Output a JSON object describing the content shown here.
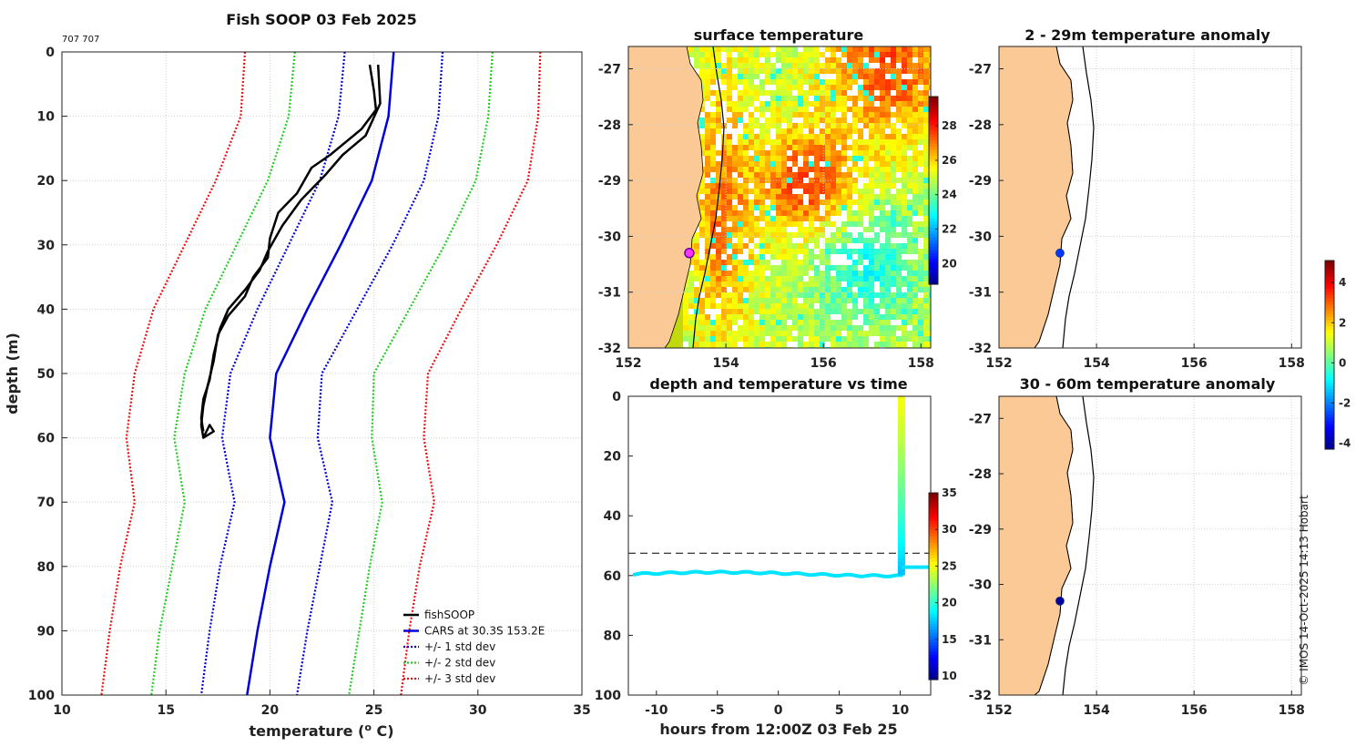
{
  "figure": {
    "copyright": "© IMOS 14-Oct-2025 14:13 Hobart",
    "land_color": "#fbc995"
  },
  "chart_data": [
    {
      "id": "profile",
      "type": "line",
      "title": "Fish SOOP 03 Feb 2025",
      "note": "707 707",
      "xlabel": "temperature (",
      "xlabel_sup": "o",
      "xlabel_end": " C)",
      "ylabel": "depth (m)",
      "xlim": [
        10,
        35
      ],
      "ylim": [
        0,
        100
      ],
      "xticks": [
        10,
        15,
        20,
        25,
        30,
        35
      ],
      "yticks": [
        0,
        10,
        20,
        30,
        40,
        50,
        60,
        70,
        80,
        90,
        100
      ],
      "legend_position": "bottom-right",
      "series": [
        {
          "name": "fishSOOP",
          "color": "#000000",
          "style": "solid",
          "points": [
            [
              24.8,
              2
            ],
            [
              25.0,
              6
            ],
            [
              25.1,
              9
            ],
            [
              24.4,
              12
            ],
            [
              22.9,
              16
            ],
            [
              22.0,
              18
            ],
            [
              21.3,
              22
            ],
            [
              20.4,
              25
            ],
            [
              20.0,
              29
            ],
            [
              19.9,
              32
            ],
            [
              19.2,
              35
            ],
            [
              18.8,
              38
            ],
            [
              18.0,
              41
            ],
            [
              17.5,
              44
            ],
            [
              17.3,
              48
            ],
            [
              17.0,
              52
            ],
            [
              16.8,
              55
            ],
            [
              16.7,
              58
            ],
            [
              16.8,
              60
            ],
            [
              17.3,
              59
            ],
            [
              17.1,
              58
            ],
            [
              16.8,
              60
            ]
          ]
        },
        {
          "name": "fishSOOP",
          "color": "#000000",
          "style": "solid",
          "nolegend": true,
          "points": [
            [
              25.2,
              2
            ],
            [
              25.3,
              8
            ],
            [
              24.6,
              13
            ],
            [
              23.5,
              16
            ],
            [
              22.7,
              19
            ],
            [
              21.5,
              23
            ],
            [
              20.6,
              27
            ],
            [
              19.9,
              31
            ],
            [
              19.5,
              34
            ],
            [
              18.8,
              37
            ],
            [
              18.0,
              40
            ],
            [
              17.6,
              43
            ],
            [
              17.3,
              47
            ],
            [
              17.1,
              51
            ],
            [
              16.8,
              54
            ],
            [
              16.7,
              57
            ],
            [
              16.8,
              59
            ]
          ]
        },
        {
          "name": "CARS at 30.3S 153.2E",
          "color": "#0000dd",
          "style": "solid",
          "points": [
            [
              25.95,
              0
            ],
            [
              25.7,
              10
            ],
            [
              24.9,
              20
            ],
            [
              23.4,
              30
            ],
            [
              21.8,
              40
            ],
            [
              20.3,
              50
            ],
            [
              20.0,
              60
            ],
            [
              20.7,
              70
            ],
            [
              20.0,
              80
            ],
            [
              19.4,
              90
            ],
            [
              18.9,
              100
            ]
          ]
        },
        {
          "name": "+/- 1 std dev",
          "color": "#0000dd",
          "style": "dotted",
          "points": [
            [
              23.6,
              0
            ],
            [
              23.3,
              10
            ],
            [
              22.4,
              20
            ],
            [
              20.9,
              30
            ],
            [
              19.4,
              40
            ],
            [
              18.1,
              50
            ],
            [
              17.7,
              60
            ],
            [
              18.3,
              70
            ],
            [
              17.6,
              80
            ],
            [
              17.1,
              90
            ],
            [
              16.7,
              100
            ]
          ]
        },
        {
          "name": "+/- 1 std dev",
          "color": "#0000dd",
          "style": "dotted",
          "nolegend": true,
          "points": [
            [
              28.3,
              0
            ],
            [
              28.1,
              10
            ],
            [
              27.4,
              20
            ],
            [
              25.9,
              30
            ],
            [
              24.2,
              40
            ],
            [
              22.5,
              50
            ],
            [
              22.3,
              60
            ],
            [
              23.0,
              70
            ],
            [
              22.4,
              80
            ],
            [
              21.8,
              90
            ],
            [
              21.3,
              100
            ]
          ]
        },
        {
          "name": "+/- 2 std dev",
          "color": "#22cc22",
          "style": "dotted",
          "points": [
            [
              21.2,
              0
            ],
            [
              20.9,
              10
            ],
            [
              19.9,
              20
            ],
            [
              18.4,
              30
            ],
            [
              16.9,
              40
            ],
            [
              15.9,
              50
            ],
            [
              15.4,
              60
            ],
            [
              15.9,
              70
            ],
            [
              15.3,
              80
            ],
            [
              14.7,
              90
            ],
            [
              14.3,
              100
            ]
          ]
        },
        {
          "name": "+/- 2 std dev",
          "color": "#22cc22",
          "style": "dotted",
          "nolegend": true,
          "points": [
            [
              30.7,
              0
            ],
            [
              30.5,
              10
            ],
            [
              29.9,
              20
            ],
            [
              28.4,
              30
            ],
            [
              26.7,
              40
            ],
            [
              25.0,
              50
            ],
            [
              24.9,
              60
            ],
            [
              25.4,
              70
            ],
            [
              24.8,
              80
            ],
            [
              24.3,
              90
            ],
            [
              23.8,
              100
            ]
          ]
        },
        {
          "name": "+/- 3 std dev",
          "color": "#ee1111",
          "style": "dotted",
          "points": [
            [
              18.8,
              0
            ],
            [
              18.6,
              10
            ],
            [
              17.4,
              20
            ],
            [
              15.9,
              30
            ],
            [
              14.4,
              40
            ],
            [
              13.5,
              50
            ],
            [
              13.1,
              60
            ],
            [
              13.5,
              70
            ],
            [
              12.8,
              80
            ],
            [
              12.3,
              90
            ],
            [
              11.9,
              100
            ]
          ]
        },
        {
          "name": "+/- 3 std dev",
          "color": "#ee1111",
          "style": "dotted",
          "nolegend": true,
          "points": [
            [
              33.0,
              0
            ],
            [
              32.9,
              10
            ],
            [
              32.4,
              20
            ],
            [
              30.9,
              30
            ],
            [
              29.2,
              40
            ],
            [
              27.6,
              50
            ],
            [
              27.4,
              60
            ],
            [
              27.9,
              70
            ],
            [
              27.2,
              80
            ],
            [
              26.7,
              90
            ],
            [
              26.3,
              100
            ]
          ]
        }
      ]
    },
    {
      "id": "sst_map",
      "type": "heatmap",
      "title": "surface temperature",
      "xlim": [
        152,
        158.2
      ],
      "ylim": [
        -32,
        -26.6
      ],
      "xticks": [
        152,
        154,
        156,
        158
      ],
      "yticks": [
        -27,
        -28,
        -29,
        -30,
        -31,
        -32
      ],
      "colorbar_ticks": [
        20,
        22,
        24,
        26,
        28
      ],
      "colorbar_range": [
        18.8,
        29.7
      ],
      "vessel_position": [
        153.25,
        -30.3
      ]
    },
    {
      "id": "depth_time",
      "type": "scatter",
      "title": "depth and temperature vs time",
      "xlabel": "hours from 12:00Z 03 Feb 25",
      "xlim": [
        -12.3,
        12.5
      ],
      "ylim": [
        0,
        100
      ],
      "xticks": [
        -10,
        -5,
        0,
        5,
        10
      ],
      "yticks": [
        0,
        20,
        40,
        60,
        80,
        100
      ],
      "colorbar_ticks": [
        10,
        15,
        20,
        25,
        30,
        35
      ],
      "colorbar_range": [
        9.5,
        35
      ],
      "reference_depth": 52.5,
      "surface_track": {
        "hours_start": -11.8,
        "hours_end": 10.1,
        "depth": 59.5,
        "temperature": 18.4
      },
      "cast": {
        "hours": 10.1,
        "depth_top": 1,
        "depth_bottom": 59,
        "temp_top": 25.2,
        "temp_bottom": 17.5
      },
      "end_segment": {
        "hours_start": 10.1,
        "hours_end": 12.3,
        "depth": 57.2,
        "temperature": 18.4
      }
    },
    {
      "id": "anom_shallow",
      "type": "scatter",
      "title": "2 - 29m temperature anomaly",
      "xlim": [
        152,
        158.2
      ],
      "ylim": [
        -32,
        -26.6
      ],
      "xticks": [
        152,
        154,
        156,
        158
      ],
      "yticks": [
        -27,
        -28,
        -29,
        -30,
        -31,
        -32
      ],
      "points": [
        {
          "lon": 153.25,
          "lat": -30.3,
          "anomaly": -2.6
        }
      ]
    },
    {
      "id": "anom_deep",
      "type": "scatter",
      "title": "30 - 60m temperature anomaly",
      "xlim": [
        152,
        158.2
      ],
      "ylim": [
        -32,
        -26.6
      ],
      "xticks": [
        152,
        154,
        156,
        158
      ],
      "yticks": [
        -27,
        -28,
        -29,
        -30,
        -31,
        -32
      ],
      "points": [
        {
          "lon": 153.25,
          "lat": -30.3,
          "anomaly": -4.0
        }
      ]
    },
    {
      "id": "anomaly_colorbar",
      "type": "colorbar",
      "ticks": [
        4,
        2,
        0,
        -2,
        -4
      ],
      "range": [
        -4.3,
        5.1
      ]
    }
  ]
}
